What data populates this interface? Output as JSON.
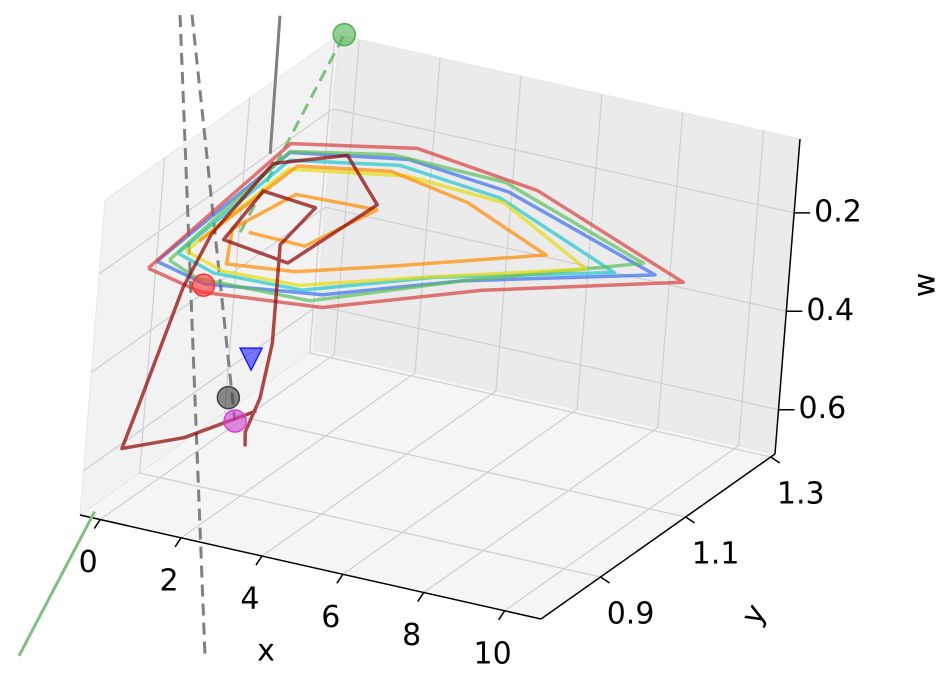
{
  "chart_data": {
    "type": "line3d",
    "xlabel": "x",
    "ylabel": "y",
    "wlabel": "w",
    "xlim": [
      -0.5,
      10.9
    ],
    "ylim": [
      0.76,
      1.31
    ],
    "wlim": [
      0.05,
      0.69
    ],
    "xticks": [
      0,
      2,
      4,
      6,
      8,
      10
    ],
    "yticks": [
      0.9,
      1.1,
      1.3
    ],
    "wticks": [
      0.2,
      0.4,
      0.6
    ],
    "w_inverted": true,
    "grid": true,
    "lines": [
      {
        "color": "#7fbf7f",
        "dashed": false,
        "x": [
          -2.1,
          -1.45
        ],
        "y": [
          0.8,
          0.893
        ],
        "w": [
          1.03,
          0.782
        ]
      },
      {
        "color": "#7fbf7f",
        "dashed": true,
        "x": [
          -0.196,
          0.7
        ],
        "y": [
          1.072,
          1.2
        ],
        "w": [
          0.3,
          -0.04
        ]
      },
      {
        "color": "#808080",
        "dashed": true,
        "x": [
          -0.009,
          1.83
        ],
        "y": [
          0.86,
          0.86
        ],
        "w": [
          -0.274,
          0.992
        ]
      },
      {
        "color": "#808080",
        "dashed": true,
        "x": [
          0.28,
          2.1
        ],
        "y": [
          0.86,
          0.86
        ],
        "w": [
          -0.28,
          0.51
        ]
      },
      {
        "color": "#808080",
        "dashed": false,
        "x": [
          -0.02,
          0.01
        ],
        "y": [
          1.11,
          1.11
        ],
        "w": [
          -0.12,
          0.16
        ]
      }
    ],
    "series": [
      {
        "color": "#3a6ff0",
        "x": [
          0,
          0.1,
          2.5,
          5,
          9.2,
          6,
          4,
          1.5,
          0
        ],
        "y": [
          0.85,
          1.15,
          1.2,
          1.2,
          1.15,
          1.0,
          0.86,
          0.82,
          0.85
        ],
        "w": [
          0.22,
          0.18,
          0.18,
          0.2,
          0.26,
          0.24,
          0.22,
          0.22,
          0.22
        ]
      },
      {
        "color": "#20c8d0",
        "x": [
          0.3,
          0.3,
          2.5,
          5,
          8.5,
          5.5,
          3.5,
          1.5,
          0.3
        ],
        "y": [
          0.87,
          1.13,
          1.18,
          1.18,
          1.12,
          0.98,
          0.86,
          0.84,
          0.87
        ],
        "w": [
          0.21,
          0.18,
          0.18,
          0.2,
          0.25,
          0.23,
          0.22,
          0.21,
          0.21
        ]
      },
      {
        "color": "#5cbf5c",
        "x": [
          0.2,
          0.2,
          2.2,
          4.8,
          8.8,
          6,
          3.8,
          1.2,
          0.2
        ],
        "y": [
          0.86,
          1.14,
          1.19,
          1.21,
          1.16,
          1.0,
          0.85,
          0.83,
          0.86
        ],
        "w": [
          0.22,
          0.17,
          0.17,
          0.19,
          0.25,
          0.24,
          0.23,
          0.22,
          0.22
        ]
      },
      {
        "color": "#e6dc10",
        "x": [
          0.4,
          0.4,
          2.8,
          5.2,
          8,
          5.2,
          3.3,
          1.6,
          0.4
        ],
        "y": [
          0.88,
          1.12,
          1.17,
          1.17,
          1.1,
          0.97,
          0.87,
          0.85,
          0.88
        ],
        "w": [
          0.21,
          0.19,
          0.19,
          0.2,
          0.24,
          0.23,
          0.22,
          0.21,
          0.21
        ]
      },
      {
        "color": "#ff8c00",
        "x": [
          0.5,
          0.6,
          2.5,
          4.5,
          7,
          4.5,
          3,
          1.5,
          0.8,
          1.2,
          3,
          2.5,
          1.2
        ],
        "y": [
          0.9,
          1.12,
          1.16,
          1.15,
          1.1,
          0.97,
          0.89,
          0.87,
          0.95,
          1.06,
          1.08,
          0.96,
          0.95
        ],
        "w": [
          0.2,
          0.18,
          0.18,
          0.2,
          0.23,
          0.22,
          0.21,
          0.21,
          0.2,
          0.19,
          0.2,
          0.21,
          0.2
        ]
      },
      {
        "color": "#d84040",
        "x": [
          -0.1,
          0,
          2.5,
          5.5,
          9.8,
          6.5,
          4.2,
          1.5,
          -0.1
        ],
        "y": [
          0.84,
          1.16,
          1.22,
          1.22,
          1.16,
          1.0,
          0.84,
          0.81,
          0.84
        ],
        "w": [
          0.23,
          0.17,
          0.17,
          0.2,
          0.27,
          0.25,
          0.23,
          0.23,
          0.23
        ]
      },
      {
        "color": "#8b0000",
        "x": [
          3,
          1.5,
          0,
          0.1,
          0.2,
          0.3,
          0.2,
          1.5,
          3,
          2.5,
          0.8,
          0.5,
          1.8,
          1.5,
          1.5,
          1.5,
          1.5,
          1.5,
          2.5
        ],
        "y": [
          0.82,
          0.8,
          0.8,
          0.82,
          0.9,
          0.95,
          1.1,
          1.15,
          1.08,
          0.92,
          0.93,
          1.05,
          1.05,
          1.0,
          1.0,
          1.0,
          0.98,
          0.95,
          0.85
        ],
        "w": [
          0.45,
          0.52,
          0.57,
          0.5,
          0.3,
          0.22,
          0.17,
          0.16,
          0.19,
          0.22,
          0.21,
          0.19,
          0.2,
          0.25,
          0.35,
          0.45,
          0.55,
          0.6,
          0.55
        ]
      }
    ],
    "markers": [
      {
        "color": "#4caf50",
        "shape": "circle",
        "x": 0.7,
        "y": 1.2,
        "w": -0.04
      },
      {
        "color": "#ff3030",
        "shape": "circle",
        "x": 0.4,
        "y": 0.93,
        "w": 0.31
      },
      {
        "color": "#2020ff",
        "shape": "triangle",
        "x": 1.5,
        "y": 0.95,
        "w": 0.45
      },
      {
        "color": "#404040",
        "shape": "circle",
        "x": 2,
        "y": 0.85,
        "w": 0.46
      },
      {
        "color": "#d040d0",
        "shape": "circle",
        "x": 2.5,
        "y": 0.82,
        "w": 0.48
      }
    ]
  }
}
